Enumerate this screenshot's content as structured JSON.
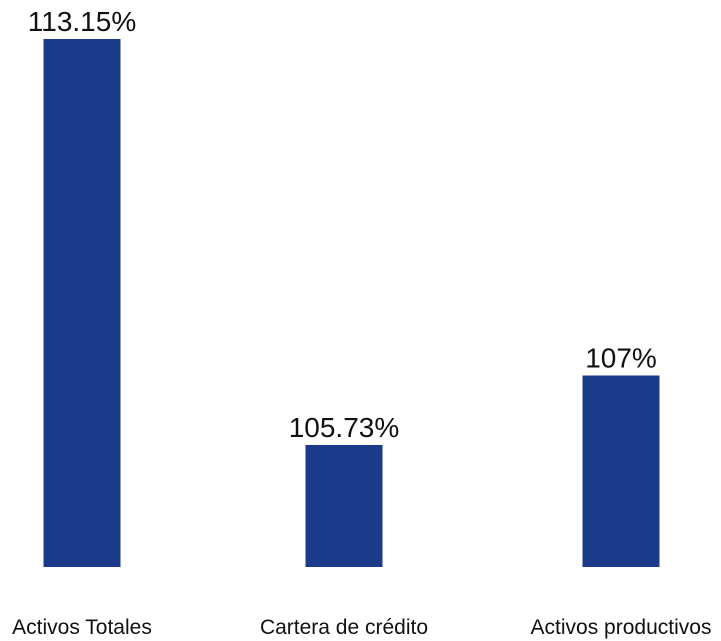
{
  "chart_data": {
    "type": "bar",
    "title": "",
    "xlabel": "",
    "ylabel": "",
    "categories": [
      "Activos Totales",
      "Cartera de crédito",
      "Activos productivos"
    ],
    "values": [
      113.15,
      105.73,
      107
    ],
    "value_labels": [
      "113.15%",
      "105.73%",
      "107%"
    ],
    "ylim": [
      103.5,
      113.15
    ],
    "grid": false,
    "legend": "none",
    "bar_color": "#1c3a8a"
  }
}
